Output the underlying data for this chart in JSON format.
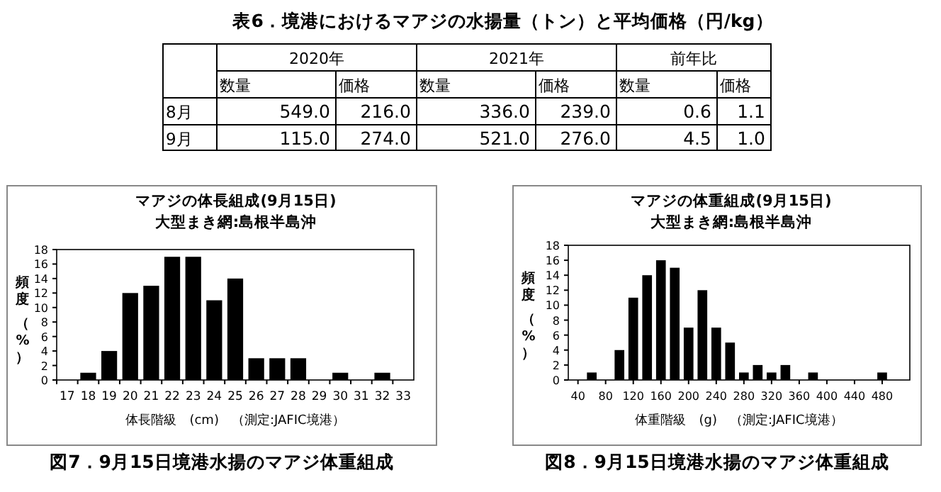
{
  "chart_data": [
    {
      "type": "other",
      "title": "表6．境港におけるマアジの水揚量（トン）と平均価格（円/kg）",
      "annotations": [
        "2020年",
        "2021年",
        "前年比"
      ],
      "categories": [
        "8月",
        "9月"
      ],
      "series": [
        {
          "name": "数量",
          "values": [
            549.0,
            115.0
          ],
          "value_labels": [
            "549.0",
            "115.0"
          ]
        },
        {
          "name": "価格",
          "values": [
            216.0,
            274.0
          ],
          "value_labels": [
            "216.0",
            "274.0"
          ]
        },
        {
          "name": "数量",
          "values": [
            336.0,
            521.0
          ],
          "value_labels": [
            "336.0",
            "521.0"
          ]
        },
        {
          "name": "価格",
          "values": [
            239.0,
            276.0
          ],
          "value_labels": [
            "239.0",
            "276.0"
          ]
        },
        {
          "name": "数量",
          "values": [
            0.6,
            4.5
          ],
          "value_labels": [
            "0.6",
            "4.5"
          ]
        },
        {
          "name": "価格",
          "values": [
            1.1,
            1.0
          ],
          "value_labels": [
            "1.1",
            "1.0"
          ]
        }
      ]
    },
    {
      "type": "bar",
      "title": "マアジの体長組成(9月15日)",
      "subtitle": "大型まき網:島根半島沖",
      "xlabel": "体長階級　(cm)　（測定:JAFIC境港）",
      "ylabel": "頻度（%）",
      "color": "#000000",
      "categories": [
        "17",
        "18",
        "19",
        "20",
        "21",
        "22",
        "23",
        "24",
        "25",
        "26",
        "27",
        "28",
        "29",
        "30",
        "31",
        "32",
        "33"
      ],
      "values": [
        0,
        1,
        4,
        12,
        13,
        17,
        17,
        11,
        14,
        3,
        3,
        3,
        0,
        1,
        0,
        1,
        0
      ],
      "ylim": [
        0,
        18
      ],
      "yticks": [
        0,
        2,
        4,
        6,
        8,
        10,
        12,
        14,
        16,
        18
      ],
      "annotations": [
        "図7．9月15日境港水揚のマアジ体重組成"
      ]
    },
    {
      "type": "bar",
      "title": "マアジの体重組成(9月15日)",
      "subtitle": "大型まき網:島根半島沖",
      "xlabel": "体重階級　(g)　（測定:JAFIC境港）",
      "ylabel": "頻度（%）",
      "color": "#000000",
      "x": [
        60,
        100,
        120,
        140,
        160,
        180,
        200,
        220,
        240,
        260,
        280,
        300,
        320,
        340,
        380,
        480
      ],
      "values": [
        1,
        4,
        11,
        14,
        16,
        15,
        7,
        12,
        7,
        5,
        1,
        2,
        1,
        2,
        1,
        1
      ],
      "xlim": [
        26,
        520
      ],
      "xticks": [
        40,
        80,
        120,
        160,
        200,
        240,
        280,
        320,
        360,
        400,
        440,
        480
      ],
      "ylim": [
        0,
        18
      ],
      "yticks": [
        0,
        2,
        4,
        6,
        8,
        10,
        12,
        14,
        16,
        18
      ],
      "annotations": [
        "図8．9月15日境港水揚のマアジ体重組成"
      ]
    }
  ]
}
